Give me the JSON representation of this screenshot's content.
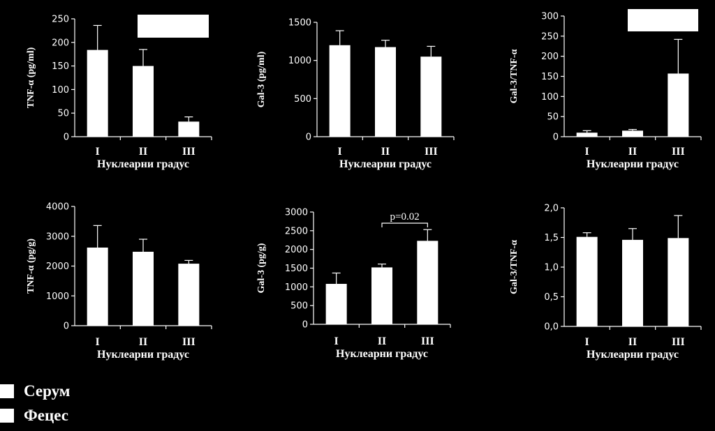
{
  "chart_data": [
    {
      "type": "bar",
      "ylabel": "TNF-α (pg/ml)",
      "xlabel": "Нуклеарни градус",
      "categories": [
        "I",
        "II",
        "III"
      ],
      "values": [
        184,
        150,
        32
      ],
      "errors": [
        52,
        35,
        10
      ],
      "ylim": [
        0,
        250
      ],
      "yticks": [
        "0",
        "50",
        "100",
        "150",
        "200",
        "250"
      ],
      "tick_values": [
        0,
        50,
        100,
        150,
        200,
        250
      ]
    },
    {
      "type": "bar",
      "ylabel": "Gal-3 (pg/ml)",
      "xlabel": "Нуклеарни градус",
      "categories": [
        "I",
        "II",
        "III"
      ],
      "values": [
        1200,
        1175,
        1050
      ],
      "errors": [
        190,
        90,
        135
      ],
      "ylim": [
        0,
        1500
      ],
      "yticks": [
        "0",
        "500",
        "1000",
        "1500"
      ],
      "tick_values": [
        0,
        500,
        1000,
        1500
      ]
    },
    {
      "type": "bar",
      "ylabel": "Gal-3/TNF-α",
      "xlabel": "Нуклеарни градус",
      "categories": [
        "I",
        "II",
        "III"
      ],
      "values": [
        10,
        15,
        157
      ],
      "errors": [
        5,
        3,
        85
      ],
      "ylim": [
        0,
        300
      ],
      "yticks": [
        "0",
        "50",
        "100",
        "150",
        "200",
        "250",
        "300"
      ],
      "tick_values": [
        0,
        50,
        100,
        150,
        200,
        250,
        300
      ]
    },
    {
      "type": "bar",
      "ylabel": "TNF-α (pg/g)",
      "xlabel": "Нуклеарни градус",
      "categories": [
        "I",
        "II",
        "III"
      ],
      "values": [
        2620,
        2480,
        2080
      ],
      "errors": [
        740,
        420,
        110
      ],
      "ylim": [
        0,
        4000
      ],
      "yticks": [
        "0",
        "1000",
        "2000",
        "3000",
        "4000"
      ],
      "tick_values": [
        0,
        1000,
        2000,
        3000,
        4000
      ]
    },
    {
      "type": "bar",
      "ylabel": "Gal-3 (pg/g)",
      "xlabel": "Нуклеарни градус",
      "categories": [
        "I",
        "II",
        "III"
      ],
      "values": [
        1080,
        1520,
        2230
      ],
      "errors": [
        290,
        90,
        300
      ],
      "ylim": [
        0,
        3000
      ],
      "yticks": [
        "0",
        "500",
        "1000",
        "1500",
        "2000",
        "2500",
        "3000"
      ],
      "tick_values": [
        0,
        500,
        1000,
        1500,
        2000,
        2500,
        3000
      ],
      "annotation": {
        "text": "p=0.02",
        "from": 1,
        "to": 2
      }
    },
    {
      "type": "bar",
      "ylabel": "Gal-3/TNF-α",
      "xlabel": "Нуклеарни градус",
      "categories": [
        "I",
        "II",
        "III"
      ],
      "values": [
        1.51,
        1.46,
        1.49
      ],
      "errors": [
        0.07,
        0.19,
        0.38
      ],
      "ylim": [
        0,
        2.0
      ],
      "yticks": [
        "0,0",
        "0,5",
        "1,0",
        "1,5",
        "2,0"
      ],
      "tick_values": [
        0,
        0.5,
        1.0,
        1.5,
        2.0
      ]
    }
  ],
  "legend": {
    "items": [
      {
        "label": "Серум",
        "color": "#ffffff"
      },
      {
        "label": "Фецес",
        "color": "#ffffff"
      }
    ]
  }
}
